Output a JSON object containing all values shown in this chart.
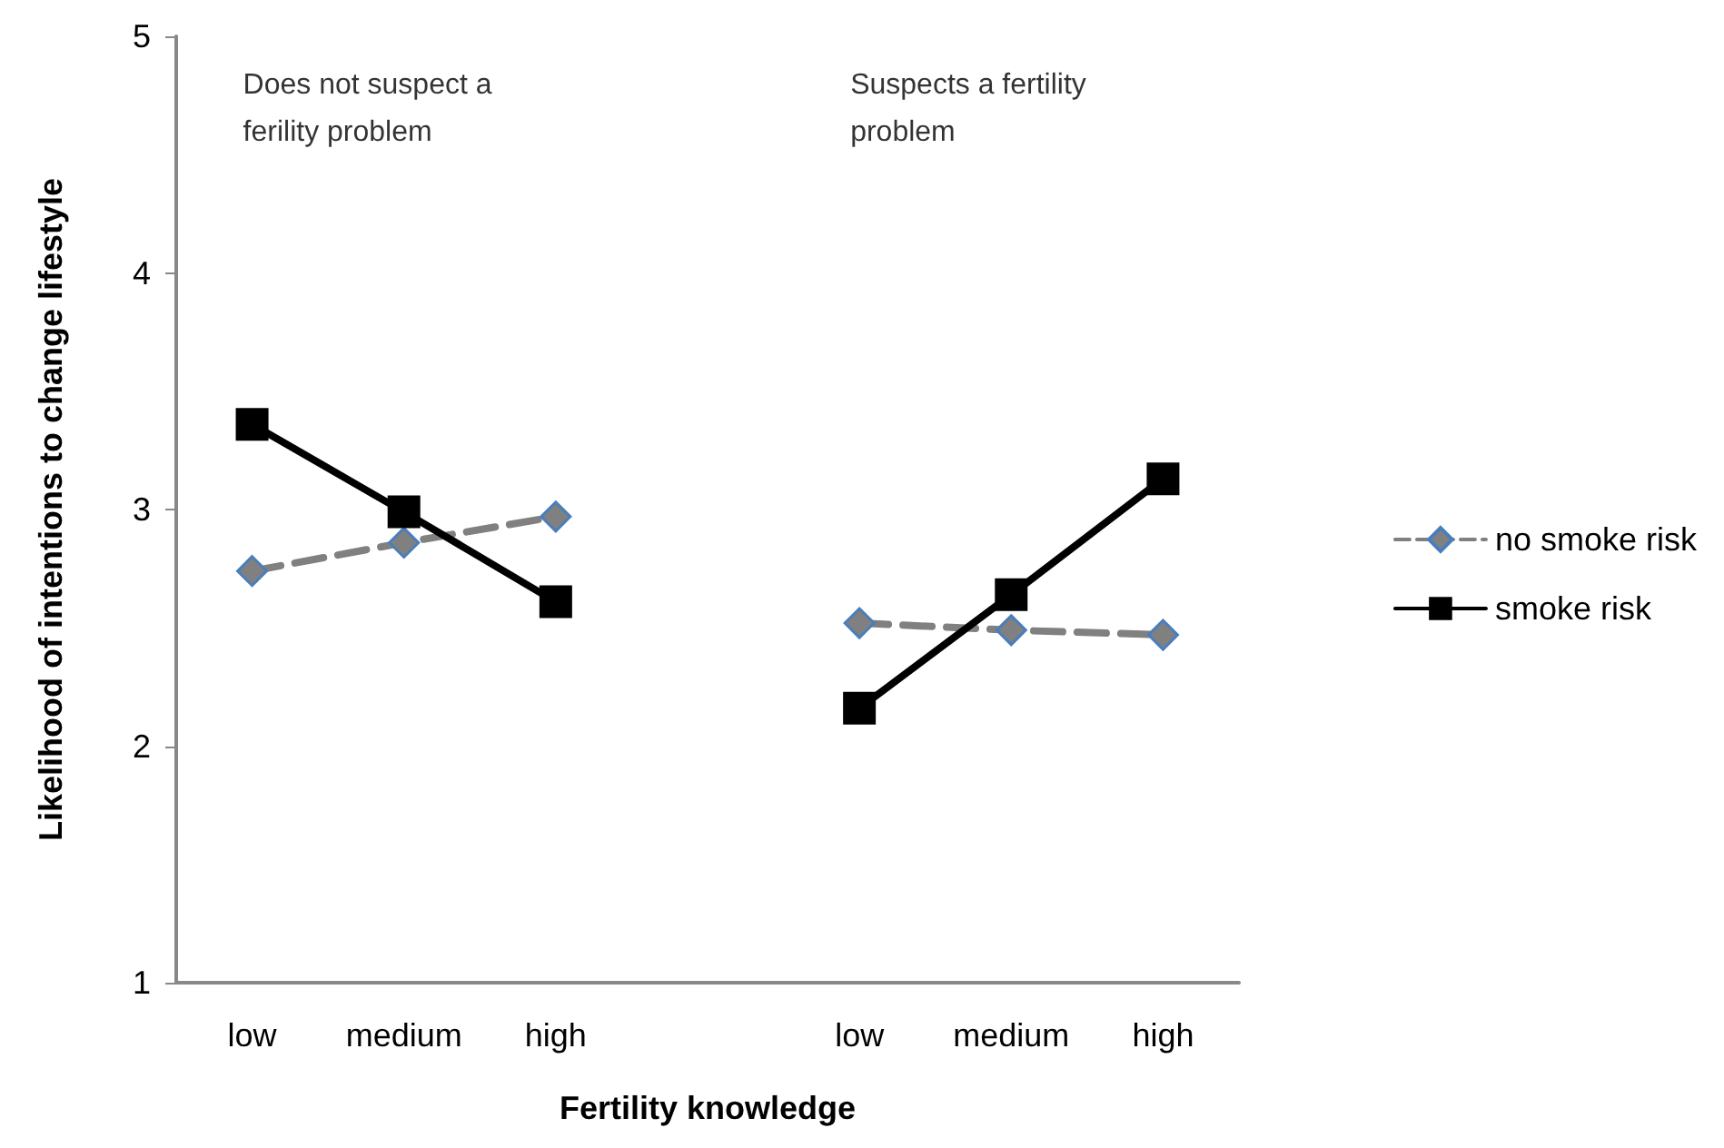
{
  "chart_data": {
    "type": "line",
    "xlabel": "Fertility knowledge",
    "ylabel": "Likelihood of intentions to change lifestyle",
    "categories": [
      "low",
      "medium",
      "high",
      null,
      "low",
      "medium",
      "high"
    ],
    "series": [
      {
        "name": "no smoke risk",
        "color": "#808080",
        "values": [
          2.74,
          2.86,
          2.97,
          null,
          2.52,
          2.49,
          2.47
        ],
        "marker": "diamond",
        "line_style": "dashed"
      },
      {
        "name": "smoke risk",
        "color": "#000000",
        "values": [
          3.36,
          2.99,
          2.61,
          null,
          2.16,
          2.64,
          3.13
        ],
        "marker": "square",
        "line_style": "solid"
      }
    ],
    "ylim": [
      1,
      5
    ],
    "yticks": [
      1,
      2,
      3,
      4,
      5
    ],
    "grid": false,
    "legend": "right",
    "annotations": [
      "Does not suspect a\nferility problem",
      "Suspects a fertility\nproblem"
    ]
  }
}
